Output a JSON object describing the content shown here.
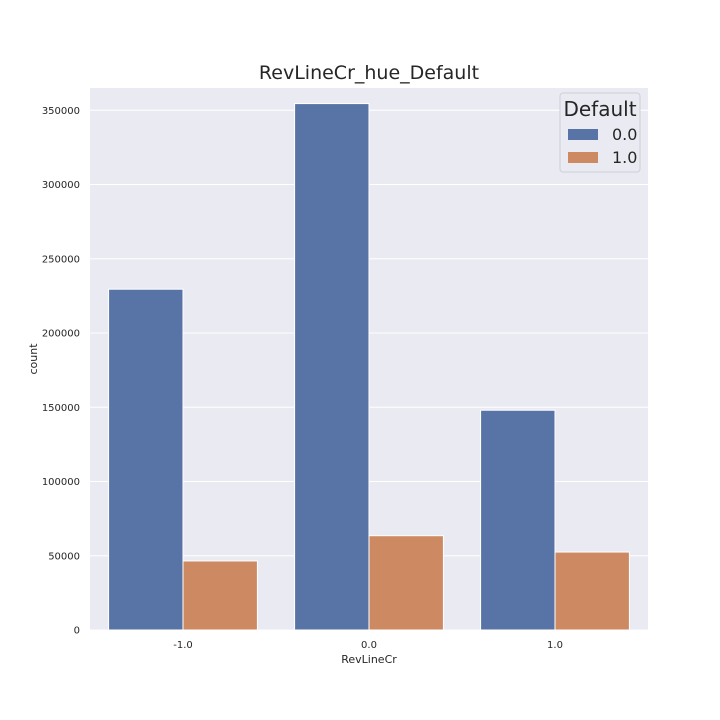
{
  "chart_data": {
    "type": "bar",
    "title": "RevLineCr_hue_Default",
    "xlabel": "RevLineCr",
    "ylabel": "count",
    "categories": [
      "-1.0",
      "0.0",
      "1.0"
    ],
    "series": [
      {
        "name": "0.0",
        "color": "#5874a6",
        "values": [
          229500,
          354500,
          148000
        ]
      },
      {
        "name": "1.0",
        "color": "#cd8962",
        "values": [
          46500,
          63500,
          52500
        ]
      }
    ],
    "ylim": [
      0,
      365000
    ],
    "yticks": [
      0,
      50000,
      100000,
      150000,
      200000,
      250000,
      300000,
      350000
    ],
    "ytick_labels": [
      "0",
      "50000",
      "100000",
      "150000",
      "200000",
      "250000",
      "300000",
      "350000"
    ],
    "grid": true,
    "background_color": "#eaeaf2",
    "legend": {
      "title": "Default",
      "placement": "top-right"
    }
  }
}
